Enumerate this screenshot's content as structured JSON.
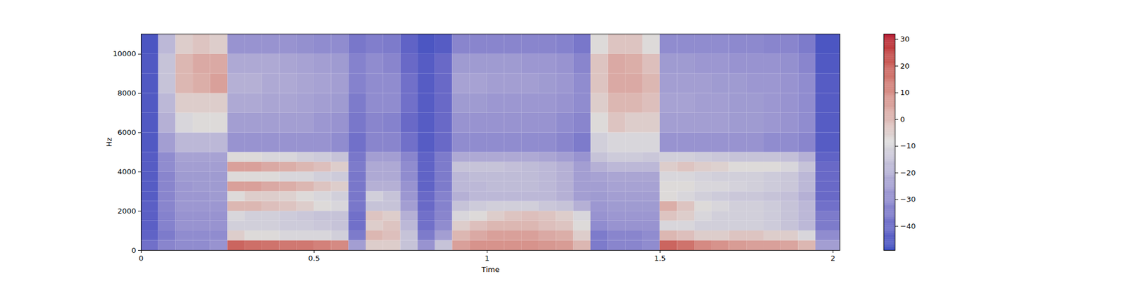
{
  "chart_data": {
    "type": "heatmap",
    "x_label": "Time",
    "y_label": "Hz",
    "xlim": [
      0,
      2.02
    ],
    "xticks": [
      0,
      0.5,
      1,
      1.5,
      2
    ],
    "ylim": [
      0,
      11025
    ],
    "yticks": [
      0,
      2000,
      4000,
      6000,
      8000,
      10000
    ],
    "x_edges": [
      0,
      0.05,
      0.1,
      0.15,
      0.2,
      0.25,
      0.3,
      0.35,
      0.4,
      0.45,
      0.5,
      0.55,
      0.6,
      0.65,
      0.7,
      0.75,
      0.8,
      0.85,
      0.9,
      0.95,
      1.0,
      1.05,
      1.1,
      1.15,
      1.2,
      1.25,
      1.3,
      1.35,
      1.4,
      1.45,
      1.5,
      1.55,
      1.6,
      1.65,
      1.7,
      1.75,
      1.8,
      1.85,
      1.9,
      1.95,
      2.02
    ],
    "y_edges": [
      0,
      500,
      1000,
      1500,
      2000,
      2500,
      3000,
      3500,
      4000,
      4500,
      5000,
      6000,
      7000,
      8000,
      9000,
      10000,
      11025
    ],
    "values": [
      [
        -38,
        -32,
        -30,
        -30,
        -28,
        18,
        16,
        15,
        14,
        14,
        12,
        10,
        -25,
        -5,
        -5,
        -15,
        -28,
        -15,
        5,
        8,
        8,
        8,
        8,
        7,
        6,
        0,
        -35,
        -32,
        -32,
        -30,
        18,
        15,
        10,
        8,
        6,
        5,
        5,
        4,
        0,
        -25
      ],
      [
        -42,
        -35,
        -30,
        -30,
        -30,
        -5,
        -8,
        -8,
        -10,
        -10,
        -10,
        -12,
        -35,
        0,
        -2,
        -15,
        -35,
        -25,
        0,
        3,
        5,
        5,
        5,
        3,
        2,
        -5,
        -35,
        -32,
        -32,
        -30,
        0,
        -2,
        -5,
        -5,
        -3,
        -3,
        -5,
        -5,
        -10,
        -30
      ],
      [
        -43,
        -33,
        -28,
        -28,
        -28,
        -12,
        -12,
        -12,
        -13,
        -13,
        -14,
        -15,
        -38,
        -5,
        -3,
        -18,
        -38,
        -30,
        -5,
        -2,
        0,
        0,
        0,
        -2,
        -3,
        -8,
        -30,
        -28,
        -28,
        -28,
        -10,
        -10,
        -12,
        -12,
        -12,
        -12,
        -13,
        -15,
        -18,
        -35
      ],
      [
        -43,
        -33,
        -28,
        -28,
        -28,
        -10,
        -12,
        -12,
        -13,
        -14,
        -15,
        -15,
        -38,
        -3,
        -5,
        -20,
        -38,
        -32,
        -10,
        -8,
        -5,
        -3,
        -2,
        -3,
        -5,
        -10,
        -28,
        -27,
        -27,
        -27,
        -3,
        -5,
        -10,
        -12,
        -12,
        -12,
        -13,
        -15,
        -18,
        -35
      ],
      [
        -43,
        -32,
        -27,
        -27,
        -27,
        0,
        0,
        -2,
        -3,
        -5,
        -8,
        -10,
        -36,
        -15,
        -15,
        -25,
        -40,
        -33,
        -15,
        -13,
        -12,
        -12,
        -12,
        -14,
        -15,
        -20,
        -27,
        -26,
        -26,
        -26,
        2,
        -3,
        -8,
        -10,
        -12,
        -12,
        -13,
        -15,
        -18,
        -38
      ],
      [
        -44,
        -32,
        -27,
        -27,
        -26,
        -8,
        -5,
        -5,
        -6,
        -8,
        -10,
        -12,
        -36,
        -12,
        -15,
        -27,
        -40,
        -33,
        -20,
        -18,
        -18,
        -18,
        -18,
        -18,
        -20,
        -25,
        -26,
        -25,
        -25,
        -25,
        -8,
        -10,
        -12,
        -13,
        -14,
        -14,
        -15,
        -16,
        -20,
        -40
      ],
      [
        -44,
        -32,
        -27,
        -26,
        -26,
        5,
        5,
        3,
        2,
        0,
        -3,
        -5,
        -36,
        -20,
        -20,
        -28,
        -42,
        -35,
        -18,
        -18,
        -17,
        -17,
        -17,
        -18,
        -20,
        -25,
        -25,
        -24,
        -24,
        -24,
        -8,
        -8,
        -10,
        -10,
        -11,
        -12,
        -13,
        -14,
        -18,
        -40
      ],
      [
        -44,
        -32,
        -26,
        -26,
        -26,
        -8,
        -8,
        -8,
        -10,
        -10,
        -12,
        -13,
        -36,
        -22,
        -22,
        -30,
        -42,
        -35,
        -18,
        -17,
        -17,
        -17,
        -17,
        -18,
        -20,
        -25,
        -24,
        -23,
        -23,
        -23,
        -10,
        -10,
        -11,
        -12,
        -12,
        -12,
        -13,
        -14,
        -18,
        -40
      ],
      [
        -44,
        -30,
        -25,
        -25,
        -25,
        5,
        5,
        3,
        2,
        0,
        -2,
        -5,
        -35,
        -22,
        -22,
        -30,
        -42,
        -35,
        -15,
        -15,
        -15,
        -16,
        -17,
        -18,
        -20,
        -25,
        -20,
        -18,
        -18,
        -18,
        -5,
        -3,
        -5,
        -6,
        -8,
        -8,
        -8,
        -10,
        -15,
        -40
      ],
      [
        -44,
        -30,
        -24,
        -24,
        -24,
        -8,
        -8,
        -10,
        -10,
        -12,
        -13,
        -15,
        -36,
        -25,
        -25,
        -32,
        -42,
        -35,
        -22,
        -22,
        -22,
        -22,
        -22,
        -23,
        -25,
        -28,
        -15,
        -13,
        -13,
        -14,
        -12,
        -12,
        -13,
        -14,
        -15,
        -15,
        -15,
        -16,
        -20,
        -42
      ],
      [
        -45,
        -25,
        -18,
        -18,
        -18,
        -28,
        -28,
        -28,
        -28,
        -28,
        -28,
        -30,
        -38,
        -32,
        -32,
        -38,
        -44,
        -40,
        -30,
        -30,
        -30,
        -30,
        -30,
        -30,
        -32,
        -35,
        -12,
        -10,
        -10,
        -10,
        -28,
        -28,
        -28,
        -28,
        -28,
        -28,
        -30,
        -30,
        -32,
        -44
      ],
      [
        -45,
        -20,
        -10,
        -8,
        -8,
        -25,
        -25,
        -25,
        -25,
        -25,
        -27,
        -28,
        -36,
        -32,
        -33,
        -40,
        -44,
        -40,
        -28,
        -28,
        -28,
        -28,
        -28,
        -28,
        -30,
        -32,
        -8,
        -3,
        -5,
        -5,
        -25,
        -25,
        -25,
        -25,
        -26,
        -26,
        -27,
        -28,
        -30,
        -44
      ],
      [
        -45,
        -18,
        -5,
        -5,
        -5,
        -22,
        -22,
        -23,
        -23,
        -24,
        -25,
        -26,
        -35,
        -30,
        -30,
        -38,
        -44,
        -40,
        -26,
        -26,
        -27,
        -27,
        -27,
        -27,
        -28,
        -30,
        -5,
        0,
        0,
        -2,
        -24,
        -24,
        -25,
        -25,
        -26,
        -26,
        -27,
        -28,
        -30,
        -44
      ],
      [
        -45,
        -15,
        0,
        2,
        5,
        -20,
        -20,
        -22,
        -22,
        -23,
        -24,
        -25,
        -33,
        -30,
        -30,
        -38,
        -44,
        -40,
        -24,
        -24,
        -25,
        -25,
        -25,
        -26,
        -27,
        -30,
        -3,
        3,
        3,
        0,
        -25,
        -25,
        -25,
        -26,
        -26,
        -27,
        -27,
        -28,
        -30,
        -44
      ],
      [
        -45,
        -15,
        0,
        3,
        3,
        -22,
        -22,
        -22,
        -23,
        -24,
        -25,
        -26,
        -33,
        -30,
        -32,
        -40,
        -44,
        -40,
        -26,
        -26,
        -26,
        -26,
        -27,
        -27,
        -28,
        -32,
        -3,
        3,
        2,
        -2,
        -26,
        -26,
        -27,
        -27,
        -28,
        -28,
        -28,
        -29,
        -32,
        -45
      ],
      [
        -46,
        -18,
        -5,
        -3,
        -5,
        -28,
        -28,
        -28,
        -28,
        -29,
        -30,
        -30,
        -36,
        -34,
        -35,
        -42,
        -46,
        -44,
        -32,
        -32,
        -32,
        -32,
        -32,
        -32,
        -33,
        -36,
        -8,
        -3,
        -3,
        -8,
        -30,
        -30,
        -30,
        -30,
        -31,
        -31,
        -32,
        -32,
        -35,
        -46
      ]
    ],
    "colorbar": {
      "range": [
        -49,
        32
      ],
      "ticks": [
        -40,
        -30,
        -20,
        -10,
        0,
        10,
        20,
        30
      ]
    }
  }
}
